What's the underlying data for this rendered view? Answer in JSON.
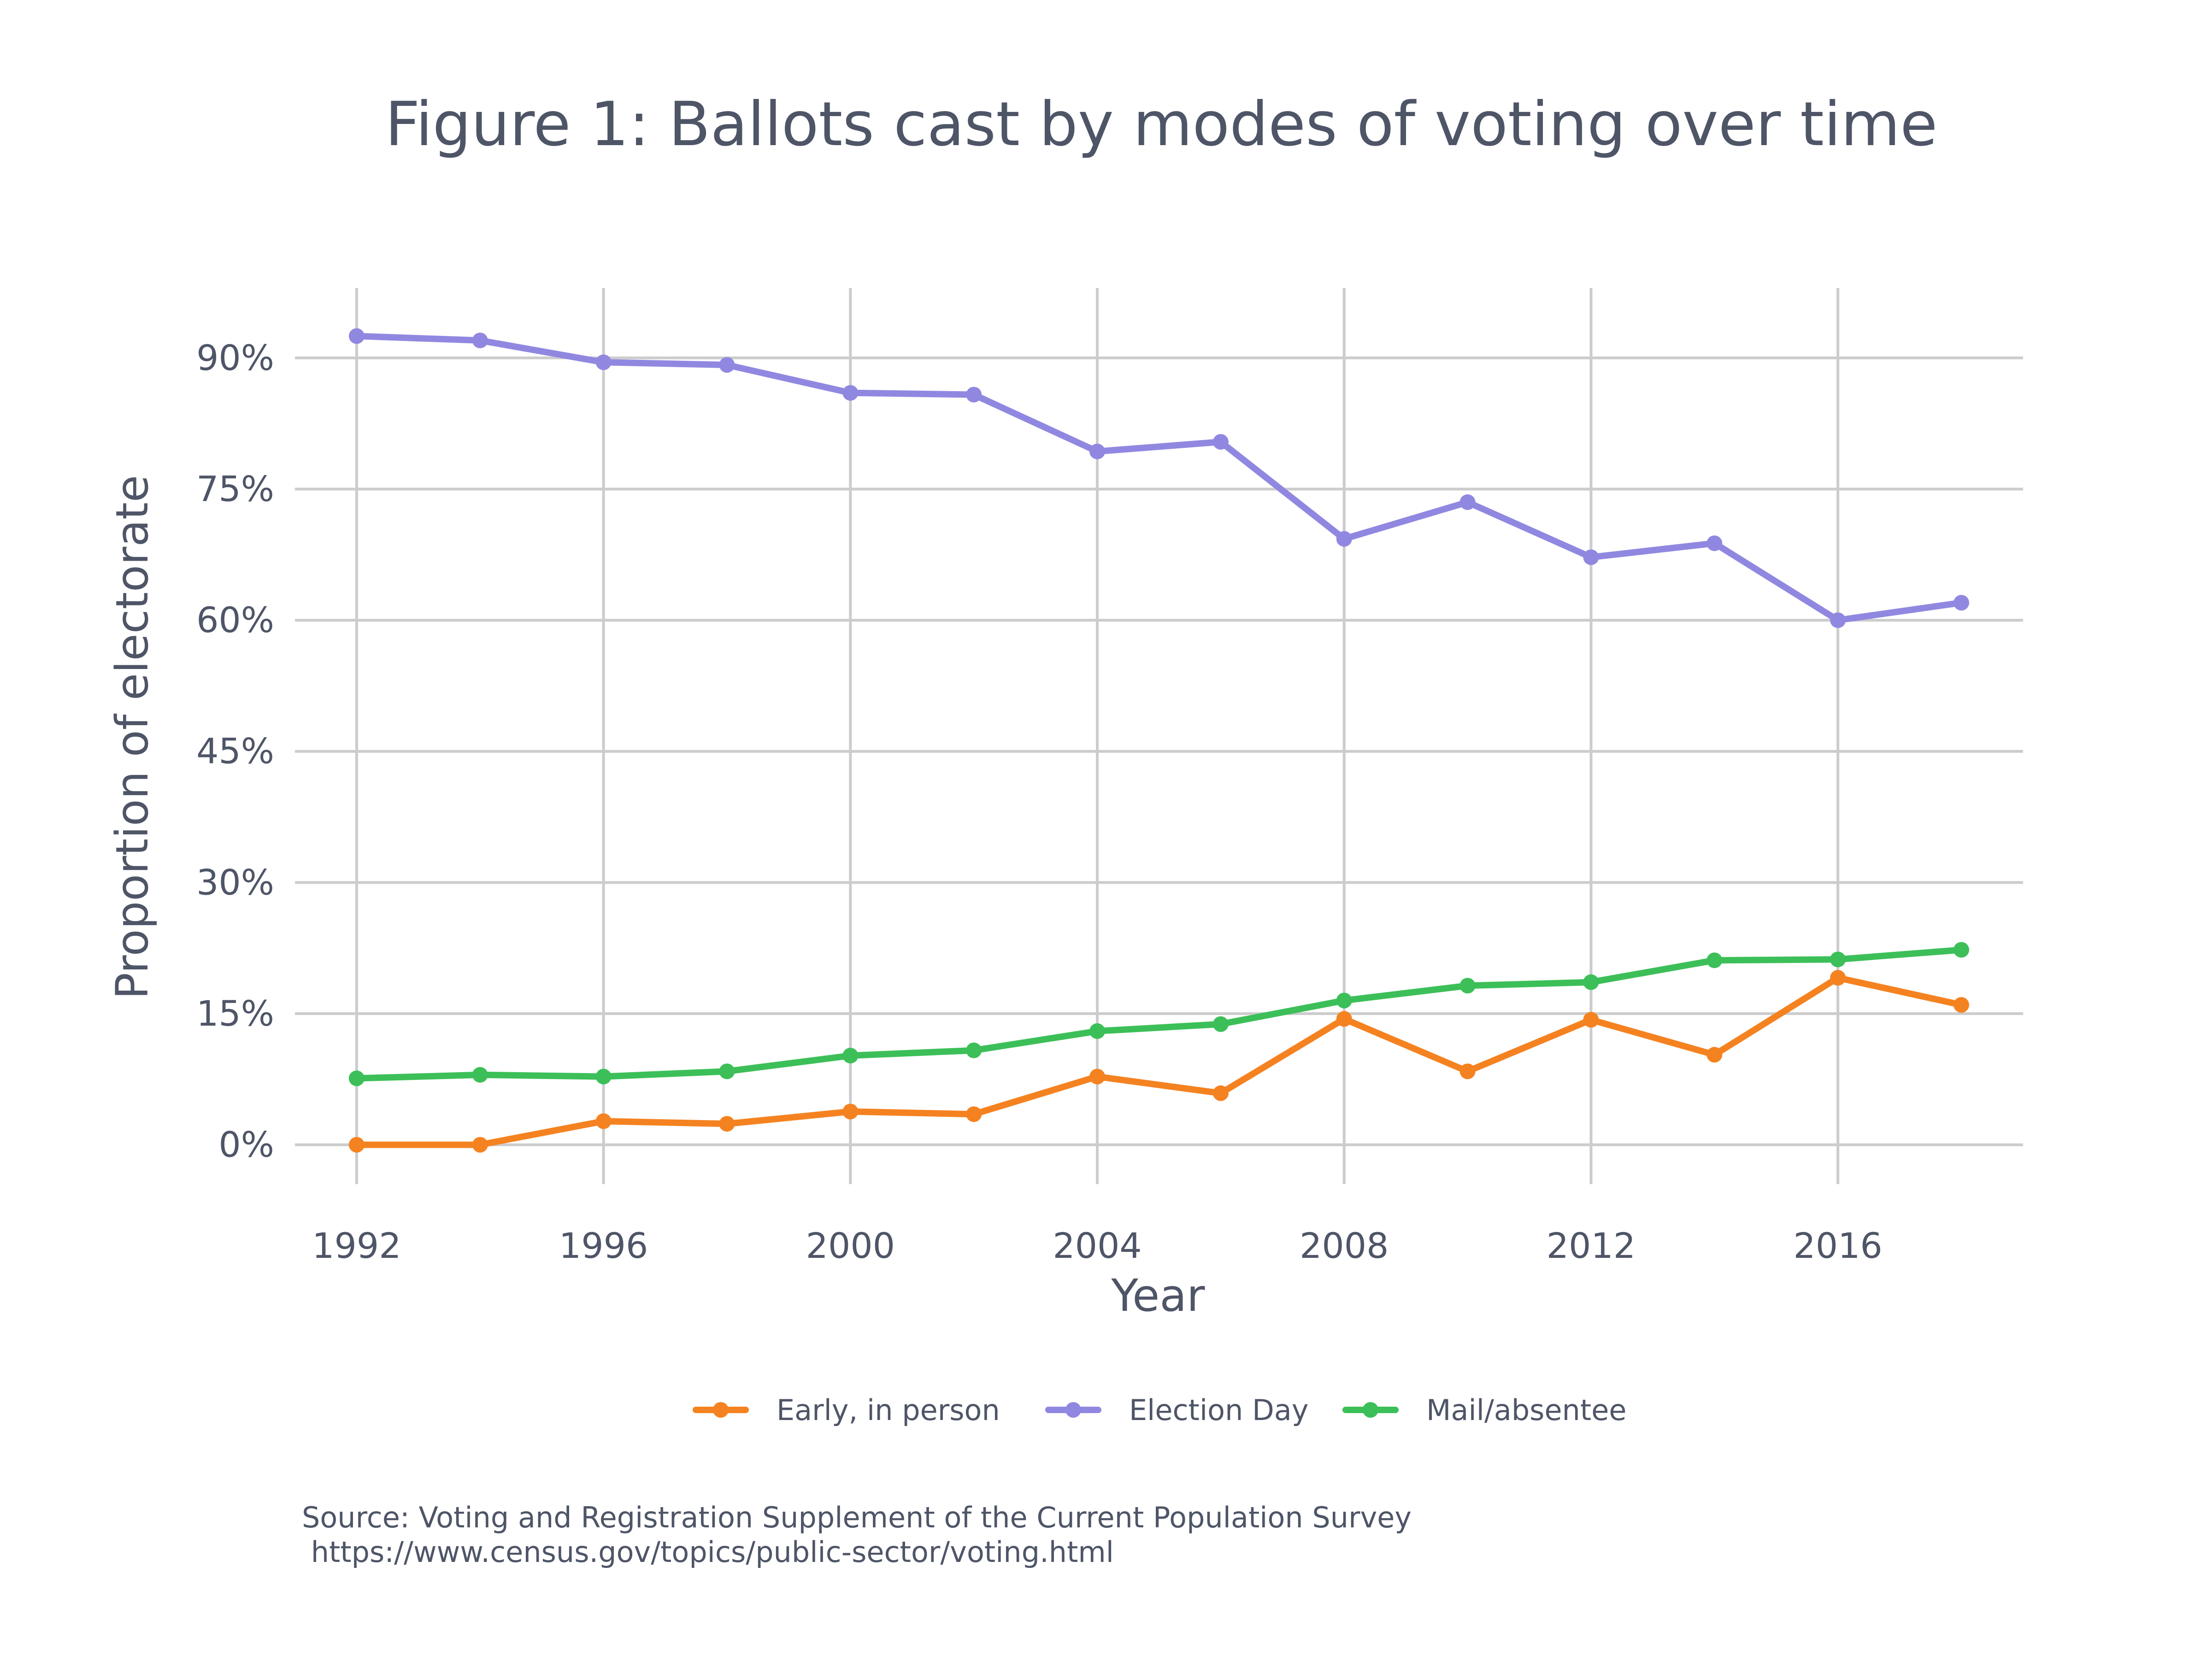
{
  "chart_data": {
    "type": "line",
    "title": "Figure 1: Ballots cast by modes of voting over time",
    "xlabel": "Year",
    "ylabel": "Proportion of electorate",
    "x": [
      1992,
      1994,
      1996,
      1998,
      2000,
      2002,
      2004,
      2006,
      2008,
      2010,
      2012,
      2014,
      2016,
      2018
    ],
    "x_ticks": [
      "1992",
      "1996",
      "2000",
      "2004",
      "2008",
      "2012",
      "2016"
    ],
    "y_ticks": [
      "0%",
      "15%",
      "30%",
      "45%",
      "60%",
      "75%",
      "90%"
    ],
    "xlim": [
      1991,
      2019
    ],
    "ylim": [
      -4.5,
      98
    ],
    "grid": true,
    "legend_position": "bottom",
    "series": [
      {
        "name": "Early, in person",
        "color": "#f58220",
        "values": [
          0.0,
          0.0,
          2.7,
          2.4,
          3.8,
          3.5,
          7.8,
          5.9,
          14.4,
          8.4,
          14.3,
          10.3,
          19.1,
          16.0
        ]
      },
      {
        "name": "Election Day",
        "color": "#9088e0",
        "values": [
          92.5,
          92.0,
          89.5,
          89.2,
          86.0,
          85.8,
          79.3,
          80.4,
          69.3,
          73.5,
          67.2,
          68.8,
          60.0,
          62.0
        ]
      },
      {
        "name": "Mail/absentee",
        "color": "#3cbf58",
        "values": [
          7.6,
          8.0,
          7.8,
          8.4,
          10.2,
          10.8,
          13.0,
          13.8,
          16.5,
          18.2,
          18.6,
          21.1,
          21.2,
          22.3
        ]
      }
    ],
    "source_lines": [
      "Source: Voting and Registration Supplement of the Current Population Survey",
      " https://www.census.gov/topics/public-sector/voting.html"
    ]
  }
}
